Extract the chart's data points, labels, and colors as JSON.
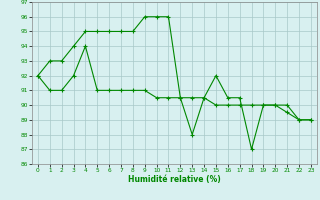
{
  "line1_x": [
    0,
    1,
    2,
    3,
    4,
    5,
    6,
    7,
    8,
    9,
    10,
    11,
    12,
    13,
    14,
    15,
    16,
    17,
    18,
    19,
    20,
    21,
    22,
    23
  ],
  "line1_y": [
    92,
    93,
    93,
    94,
    95,
    95,
    95,
    95,
    95,
    96,
    96,
    96,
    90.5,
    88,
    90.5,
    92,
    90.5,
    90.5,
    87,
    90,
    90,
    90,
    89,
    89
  ],
  "line2_x": [
    0,
    1,
    2,
    3,
    4,
    5,
    6,
    7,
    8,
    9,
    10,
    11,
    12,
    13,
    14,
    15,
    16,
    17,
    18,
    19,
    20,
    21,
    22,
    23
  ],
  "line2_y": [
    92,
    91,
    91,
    92,
    94,
    91,
    91,
    91,
    91,
    91,
    90.5,
    90.5,
    90.5,
    90.5,
    90.5,
    90,
    90,
    90,
    90,
    90,
    90,
    89.5,
    89,
    89
  ],
  "line_color": "#008800",
  "bg_color": "#d8f0f0",
  "grid_color": "#a8c8c8",
  "xlabel": "Humidité relative (%)",
  "xlim": [
    -0.5,
    23.5
  ],
  "ylim": [
    86,
    97
  ],
  "yticks": [
    86,
    87,
    88,
    89,
    90,
    91,
    92,
    93,
    94,
    95,
    96,
    97
  ],
  "xticks": [
    0,
    1,
    2,
    3,
    4,
    5,
    6,
    7,
    8,
    9,
    10,
    11,
    12,
    13,
    14,
    15,
    16,
    17,
    18,
    19,
    20,
    21,
    22,
    23
  ],
  "marker": "+",
  "marker_size": 3.5,
  "line_width": 0.8
}
